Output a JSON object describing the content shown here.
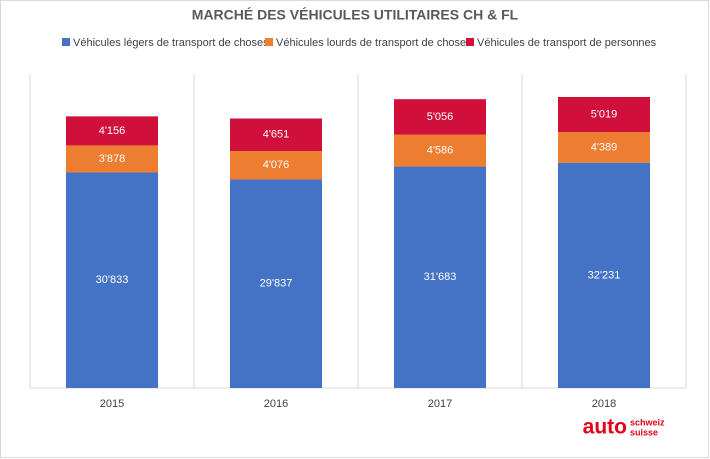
{
  "chart_data": {
    "type": "stacked-bar",
    "title": "MARCHÉ DES VÉHICULES UTILITAIRES CH & FL",
    "categories": [
      "2015",
      "2016",
      "2017",
      "2018"
    ],
    "series": [
      {
        "name": "Véhicules légers de transport de choses",
        "color": "#4472c4",
        "values": [
          30833,
          29837,
          31683,
          32231
        ],
        "value_labels": [
          "30'833",
          "29'837",
          "31'683",
          "32'231"
        ]
      },
      {
        "name": "Véhicules lourds de transport de choses",
        "color": "#ed7d31",
        "values": [
          3878,
          4076,
          4586,
          4389
        ],
        "value_labels": [
          "3'878",
          "4'076",
          "4'586",
          "4'389"
        ]
      },
      {
        "name": "Véhicules de transport de personnes",
        "color": "#d0103a",
        "values": [
          4156,
          4651,
          5056,
          5019
        ],
        "value_labels": [
          "4'156",
          "4'651",
          "5'056",
          "5'019"
        ]
      }
    ],
    "legend": "top"
  },
  "logo": {
    "main": "auto",
    "sub": [
      "schweiz",
      "suisse"
    ]
  }
}
